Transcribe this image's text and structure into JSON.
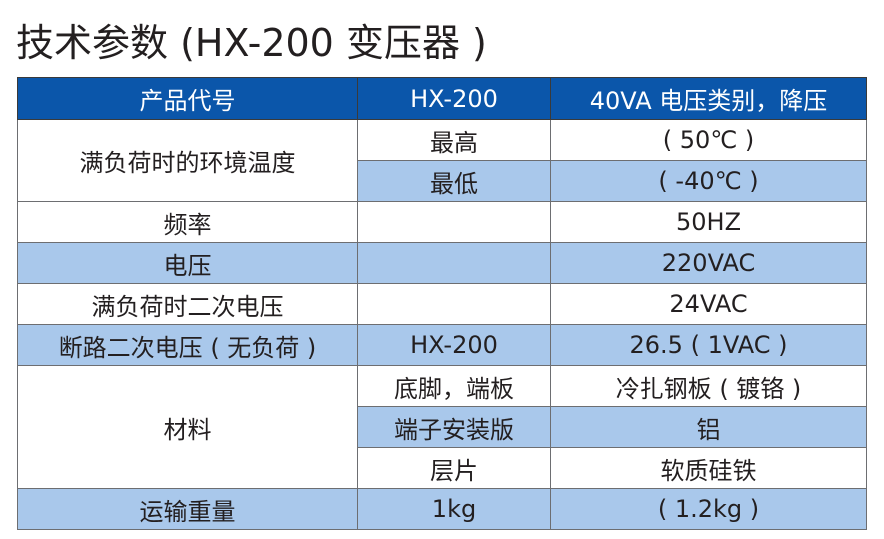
{
  "title": "技术参数 (HX-200 变压器 )",
  "colors": {
    "header_bg": "#0b56aa",
    "header_text": "#ffffff",
    "row_light_blue": "#a9c8eb",
    "row_white": "#ffffff",
    "border": "#6d6e71"
  },
  "table": {
    "header": [
      "产品代号",
      "HX-200",
      "40VA 电压类别，降压"
    ],
    "rows": {
      "ambient_temp": {
        "label": "满负荷时的环境温度",
        "max": {
          "label": "最高",
          "value": "( 50℃ )"
        },
        "min": {
          "label": "最低",
          "value": "( -40℃ )"
        }
      },
      "frequency": {
        "label": "频率",
        "model": "",
        "value": "50HZ"
      },
      "voltage": {
        "label": "电压",
        "model": "",
        "value": "220VAC"
      },
      "full_load_secondary": {
        "label": "满负荷时二次电压",
        "model": "",
        "value": "24VAC"
      },
      "open_circuit_secondary": {
        "label": "断路二次电压 ( 无负荷 )",
        "model": "HX-200",
        "value": "26.5 ( 1VAC )"
      },
      "materials": {
        "label": "材料",
        "items": [
          {
            "part": "底脚，端板",
            "material": "冷扎钢板 ( 镀铬 )"
          },
          {
            "part": "端子安装版",
            "material": "铝"
          },
          {
            "part": "层片",
            "material": "软质硅铁"
          }
        ]
      },
      "shipping_weight": {
        "label": "运输重量",
        "model": "1kg",
        "value": "( 1.2kg )"
      }
    }
  }
}
